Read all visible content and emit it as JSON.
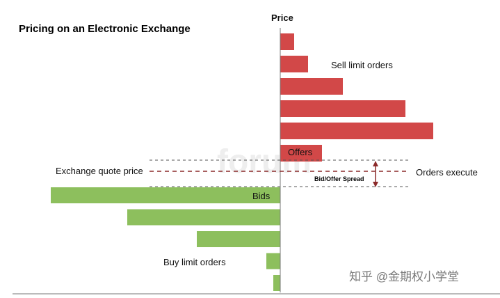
{
  "chart_data": {
    "type": "bar",
    "orientation": "horizontal",
    "title": "Pricing on an Electronic Exchange",
    "axis_label": "Price",
    "series": [
      {
        "name": "Sell limit orders",
        "color": "#d24848",
        "values": [
          20,
          40,
          90,
          180,
          220,
          60
        ]
      },
      {
        "name": "Buy limit orders",
        "color": "#8dbf5d",
        "values": [
          330,
          220,
          120,
          20,
          10
        ]
      }
    ],
    "annotations": {
      "offers_label": "Offers",
      "bids_label": "Bids",
      "quote_price_label": "Exchange quote price",
      "spread_label": "Bid/Offer Spread",
      "orders_execute_label": "Orders execute"
    }
  },
  "watermark": {
    "text": "知乎 @金期权小学堂",
    "background_text": "forum"
  }
}
